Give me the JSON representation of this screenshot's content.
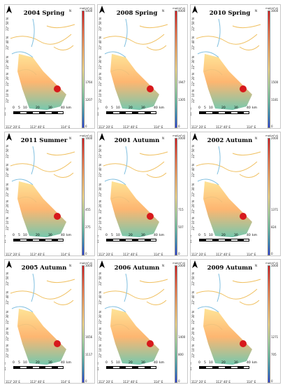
{
  "panels": [
    {
      "title": "2004 Spring",
      "unit": "mg/(m²·d)",
      "cb_top": "5000",
      "cb_mid1": "1764",
      "cb_mid2": "1207",
      "cb_bot": "0"
    },
    {
      "title": "2008 Spring",
      "unit": "mg/(m²·d)",
      "cb_top": "4000",
      "cb_mid1": "1947",
      "cb_mid2": "1305",
      "cb_bot": "0"
    },
    {
      "title": "2010 Spring",
      "unit": "mg/(m²·d)",
      "cb_top": "3000",
      "cb_mid1": "1500",
      "cb_mid2": "1181",
      "cb_bot": "0"
    },
    {
      "title": "2011 Summer",
      "unit": "mg/(m²·d)",
      "cb_top": "1600",
      "cb_mid1": "455",
      "cb_mid2": "275",
      "cb_bot": "0"
    },
    {
      "title": "2001 Autumn",
      "unit": "mg/(m²·d)",
      "cb_top": "2000",
      "cb_mid1": "715",
      "cb_mid2": "507",
      "cb_bot": "0"
    },
    {
      "title": "2002 Autumn",
      "unit": "mg/(m²·d)",
      "cb_top": "2000",
      "cb_mid1": "1371",
      "cb_mid2": "824",
      "cb_bot": "0"
    },
    {
      "title": "2005 Autumn",
      "unit": "mg/(m²·d)",
      "cb_top": "3000",
      "cb_mid1": "1656",
      "cb_mid2": "1117",
      "cb_bot": "0"
    },
    {
      "title": "2006 Autumn",
      "unit": "mg/(m²·d)",
      "cb_top": "2000",
      "cb_mid1": "1400",
      "cb_mid2": "800",
      "cb_bot": "0"
    },
    {
      "title": "2009 Autumn",
      "unit": "mg/(m²·d)",
      "cb_top": "3000",
      "cb_mid1": "1271",
      "cb_mid2": "705",
      "cb_bot": "0"
    }
  ],
  "common": {
    "scale_labels": [
      "0",
      "5",
      "10",
      "20",
      "30",
      "40"
    ],
    "scale_unit": "km",
    "lon_labels": [
      "113° 20' E",
      "113° 40' E",
      "114° E"
    ],
    "lat_labels": [
      "22° N",
      "22° 10' N",
      "22° 20' N",
      "22° 30' N",
      "22° 40' N",
      "22° 50' N"
    ],
    "north_letter": "N"
  },
  "colors": {
    "high": "#d7191c",
    "mid": "#fee08b",
    "low": "#2b3fd6",
    "land_outline": "#dddddd"
  }
}
